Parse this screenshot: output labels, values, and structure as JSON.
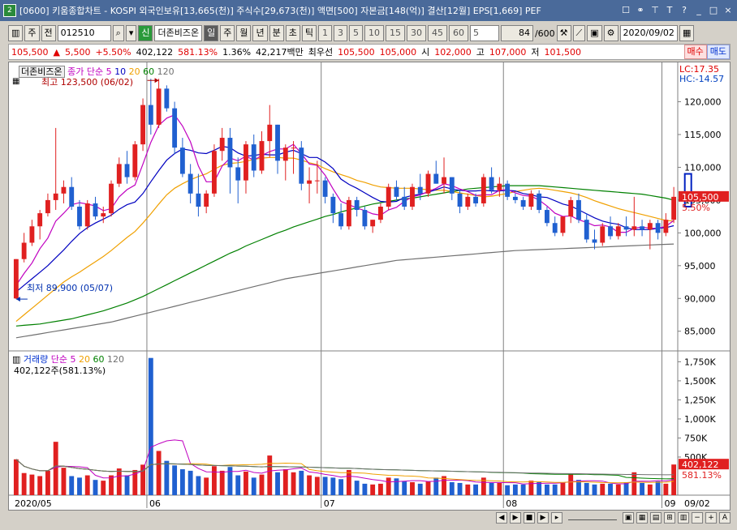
{
  "titlebar": {
    "badge": "2",
    "text": "[0600] 키움종합차트 - KOSPI 외국인보유[13,665(천)] 주식수[29,673(천)] 액면[500] 자본금[148(억)] 결산[12월] EPS[1,669] PEF"
  },
  "toolbar": {
    "market": "주",
    "full": "전",
    "code": "012510",
    "new_badge": "신",
    "name": "더존비즈온",
    "periods": [
      "일",
      "주",
      "월",
      "년",
      "분",
      "초",
      "틱"
    ],
    "selected_period": "일",
    "intervals": [
      "1",
      "3",
      "5",
      "10",
      "15",
      "30",
      "45",
      "60"
    ],
    "interval_value": "5",
    "count": "84",
    "total": "/600",
    "date": "2020/09/02"
  },
  "ticker": {
    "price": "105,500",
    "arrow": "▲",
    "change": "5,500",
    "change_pct": "+5.50%",
    "volume": "402,122",
    "volume_pct": "581.13%",
    "turnover": "1.36%",
    "amount": "42,217백만",
    "best": "최우선",
    "best_ask": "105,500",
    "best_bid": "105,000",
    "open_label": "시",
    "open": "102,000",
    "high_label": "고",
    "high": "107,000",
    "low_label": "저",
    "low": "101,500",
    "buy": "매수",
    "sell": "매도"
  },
  "price_panel": {
    "name_tag": "더존비즈온",
    "ma_label": "종가 단순",
    "ma_periods": [
      "5",
      "10",
      "20",
      "60",
      "120"
    ],
    "ma_colors": [
      "#c000c0",
      "#0000c0",
      "#f0a000",
      "#008000",
      "#707070"
    ],
    "high_note": "최고 123,500 (06/02)",
    "low_note": "최저 89,900 (05/07)",
    "lc": "LC:17.35",
    "hc": "HC:-14.57",
    "last_price": "105,500",
    "last_pct": "5.50%",
    "yticks": [
      "120,000",
      "115,000",
      "110,000",
      "105,000",
      "100,000",
      "95,000",
      "90,000",
      "85,000"
    ]
  },
  "volume_panel": {
    "label": "거래량",
    "ma_label": "단순",
    "ma_periods": [
      "5",
      "20",
      "60",
      "120"
    ],
    "current": "402,122주(581.13%)",
    "last_vol": "402,122",
    "last_pct": "581.13%",
    "yticks": [
      "1,750K",
      "1,500K",
      "1,250K",
      "1,000K",
      "750K",
      "500K"
    ]
  },
  "xaxis": {
    "labels": [
      "2020/05",
      "06",
      "07",
      "08",
      "09"
    ],
    "right_label": "09/02"
  },
  "colors": {
    "up": "#e02020",
    "down": "#2060d0"
  },
  "chart_data": {
    "type": "candlestick",
    "ylim": [
      82000,
      126000
    ],
    "volume_ylim": [
      0,
      1850000
    ],
    "dates": [
      "05/07",
      "05/08",
      "05/11",
      "05/12",
      "05/13",
      "05/14",
      "05/15",
      "05/18",
      "05/19",
      "05/20",
      "05/21",
      "05/22",
      "05/25",
      "05/26",
      "05/27",
      "05/28",
      "05/29",
      "06/01",
      "06/02",
      "06/03",
      "06/04",
      "06/05",
      "06/08",
      "06/09",
      "06/10",
      "06/11",
      "06/12",
      "06/15",
      "06/16",
      "06/17",
      "06/18",
      "06/19",
      "06/22",
      "06/23",
      "06/24",
      "06/25",
      "06/26",
      "06/29",
      "06/30",
      "07/01",
      "07/02",
      "07/03",
      "07/06",
      "07/07",
      "07/08",
      "07/09",
      "07/10",
      "07/13",
      "07/14",
      "07/15",
      "07/16",
      "07/17",
      "07/20",
      "07/21",
      "07/22",
      "07/23",
      "07/24",
      "07/27",
      "07/28",
      "07/29",
      "07/30",
      "07/31",
      "08/03",
      "08/04",
      "08/05",
      "08/06",
      "08/07",
      "08/10",
      "08/11",
      "08/12",
      "08/13",
      "08/14",
      "08/18",
      "08/19",
      "08/20",
      "08/21",
      "08/24",
      "08/25",
      "08/26",
      "08/27",
      "08/28",
      "08/31",
      "09/01",
      "09/02"
    ],
    "ohlc": [
      [
        90000,
        96000,
        89900,
        96000
      ],
      [
        96000,
        100000,
        95500,
        98500
      ],
      [
        98500,
        102000,
        98000,
        101000
      ],
      [
        101000,
        103500,
        99000,
        103000
      ],
      [
        103000,
        106000,
        102500,
        105000
      ],
      [
        105000,
        116000,
        103500,
        106000
      ],
      [
        106000,
        108000,
        104500,
        107000
      ],
      [
        107000,
        108500,
        103500,
        104000
      ],
      [
        104000,
        105000,
        100500,
        101000
      ],
      [
        101000,
        105000,
        100500,
        104500
      ],
      [
        104500,
        105500,
        102000,
        102500
      ],
      [
        102500,
        104000,
        101500,
        103000
      ],
      [
        103000,
        108000,
        102500,
        107500
      ],
      [
        107500,
        111500,
        107000,
        110500
      ],
      [
        110500,
        112500,
        107500,
        108500
      ],
      [
        108500,
        114000,
        108000,
        113500
      ],
      [
        113500,
        120500,
        112500,
        119500
      ],
      [
        119500,
        123500,
        115000,
        116500
      ],
      [
        116500,
        123500,
        116000,
        122000
      ],
      [
        122000,
        122500,
        118500,
        119000
      ],
      [
        119000,
        120000,
        112000,
        113000
      ],
      [
        113000,
        114500,
        108500,
        109000
      ],
      [
        109000,
        110500,
        104500,
        106000
      ],
      [
        106000,
        109000,
        102500,
        104000
      ],
      [
        104000,
        106500,
        103000,
        106000
      ],
      [
        106000,
        113500,
        105500,
        112500
      ],
      [
        112500,
        116000,
        111000,
        114500
      ],
      [
        114500,
        116000,
        106000,
        110000
      ],
      [
        110000,
        111500,
        104500,
        108000
      ],
      [
        108000,
        114000,
        106000,
        113500
      ],
      [
        113500,
        115000,
        108500,
        109500
      ],
      [
        109500,
        115500,
        109000,
        114000
      ],
      [
        114000,
        119500,
        111500,
        116500
      ],
      [
        116500,
        116500,
        109000,
        111000
      ],
      [
        111000,
        113500,
        108000,
        113000
      ],
      [
        113000,
        114000,
        109000,
        113000
      ],
      [
        113000,
        114000,
        106500,
        107500
      ],
      [
        107500,
        110000,
        104500,
        108000
      ],
      [
        108000,
        111000,
        106000,
        108000
      ],
      [
        108000,
        108500,
        104500,
        105500
      ],
      [
        105500,
        106000,
        101500,
        103000
      ],
      [
        103000,
        104500,
        100500,
        101000
      ],
      [
        101000,
        105500,
        100500,
        105000
      ],
      [
        105000,
        105500,
        102500,
        103500
      ],
      [
        103500,
        104000,
        100500,
        101000
      ],
      [
        101000,
        102000,
        100000,
        102000
      ],
      [
        102000,
        104500,
        101500,
        104000
      ],
      [
        104000,
        107500,
        103500,
        107000
      ],
      [
        107000,
        108000,
        105000,
        105500
      ],
      [
        105500,
        107000,
        103500,
        104000
      ],
      [
        104000,
        107500,
        103500,
        107000
      ],
      [
        107000,
        109000,
        105000,
        106000
      ],
      [
        106000,
        109500,
        105500,
        109000
      ],
      [
        109000,
        111000,
        107500,
        107500
      ],
      [
        107500,
        111500,
        106000,
        108500
      ],
      [
        108500,
        108500,
        105000,
        106000
      ],
      [
        106000,
        106500,
        103000,
        104000
      ],
      [
        104000,
        106000,
        103500,
        105500
      ],
      [
        105500,
        106000,
        104000,
        104500
      ],
      [
        104500,
        109000,
        104000,
        108500
      ],
      [
        108500,
        110000,
        106000,
        106500
      ],
      [
        106500,
        108500,
        105500,
        107500
      ],
      [
        107500,
        108000,
        105000,
        105500
      ],
      [
        105500,
        106000,
        104500,
        105000
      ],
      [
        105000,
        105500,
        103500,
        104000
      ],
      [
        104000,
        106500,
        103500,
        106000
      ],
      [
        106000,
        106500,
        103000,
        103500
      ],
      [
        103500,
        104000,
        101000,
        101500
      ],
      [
        101500,
        102500,
        99500,
        100000
      ],
      [
        100000,
        102500,
        99500,
        102500
      ],
      [
        102500,
        105500,
        101500,
        105000
      ],
      [
        105000,
        106000,
        101500,
        102000
      ],
      [
        102000,
        103000,
        98500,
        99000
      ],
      [
        99000,
        100500,
        97500,
        98500
      ],
      [
        98500,
        101500,
        98000,
        101000
      ],
      [
        101000,
        102500,
        99000,
        99500
      ],
      [
        99500,
        101500,
        99000,
        101000
      ],
      [
        101000,
        102500,
        99500,
        100500
      ],
      [
        100500,
        105500,
        99500,
        101000
      ],
      [
        101000,
        102000,
        99500,
        100500
      ],
      [
        100500,
        102000,
        97500,
        101500
      ],
      [
        101500,
        102000,
        99000,
        100000
      ],
      [
        100000,
        103000,
        99500,
        102000
      ],
      [
        102000,
        107000,
        101500,
        105500
      ]
    ],
    "volumes": [
      470000,
      290000,
      270000,
      250000,
      320000,
      700000,
      360000,
      250000,
      230000,
      260000,
      200000,
      190000,
      260000,
      350000,
      260000,
      330000,
      400000,
      1800000,
      580000,
      450000,
      390000,
      340000,
      320000,
      250000,
      230000,
      380000,
      320000,
      370000,
      260000,
      310000,
      230000,
      270000,
      520000,
      300000,
      340000,
      300000,
      320000,
      260000,
      240000,
      240000,
      230000,
      210000,
      330000,
      190000,
      150000,
      140000,
      150000,
      230000,
      220000,
      180000,
      170000,
      150000,
      180000,
      230000,
      250000,
      170000,
      160000,
      140000,
      140000,
      230000,
      160000,
      160000,
      130000,
      140000,
      140000,
      190000,
      170000,
      140000,
      140000,
      170000,
      270000,
      200000,
      160000,
      140000,
      150000,
      150000,
      140000,
      170000,
      300000,
      160000,
      140000,
      180000,
      150000,
      402122
    ],
    "ma5": [
      92000,
      93800,
      95400,
      97600,
      99200,
      101800,
      103000,
      104300,
      104600,
      104400,
      104100,
      103400,
      103700,
      105500,
      106600,
      107300,
      110500,
      113800,
      116400,
      117500,
      118000,
      116300,
      113900,
      110200,
      107800,
      107800,
      110200,
      111400,
      111000,
      111700,
      111100,
      111800,
      112400,
      112800,
      112800,
      113500,
      112100,
      110500,
      110300,
      108800,
      106700,
      104800,
      104300,
      103800,
      103400,
      102900,
      102700,
      103500,
      103900,
      104800,
      105500,
      105800,
      106300,
      106800,
      107500,
      107200,
      106700,
      106300,
      105700,
      105800,
      105800,
      106500,
      106600,
      106100,
      105700,
      105600,
      105000,
      104100,
      103000,
      102500,
      102600,
      102000,
      101600,
      101100,
      101200,
      100900,
      100100,
      100100,
      100700,
      100900,
      100700,
      100700,
      101000,
      101900
    ],
    "ma10": [
      91000,
      92000,
      93000,
      94000,
      95000,
      96200,
      97400,
      98700,
      99900,
      100800,
      101500,
      102100,
      102700,
      103600,
      104300,
      104700,
      106000,
      107800,
      109500,
      111100,
      112100,
      112800,
      112600,
      112200,
      112100,
      112600,
      113200,
      113000,
      112200,
      111700,
      111800,
      112000,
      111900,
      111900,
      112300,
      112600,
      112100,
      111500,
      111500,
      110800,
      109800,
      108200,
      107400,
      106800,
      106100,
      105400,
      104800,
      104700,
      104800,
      105400,
      105700,
      105900,
      106200,
      106600,
      107000,
      106700,
      106500,
      106400,
      106400,
      106500,
      106400,
      106400,
      106500,
      106400,
      106000,
      105800,
      105500,
      105400,
      104900,
      104400,
      104100,
      103500,
      102900,
      102300,
      101800,
      101500,
      101300,
      100800,
      100500,
      100500,
      100500,
      100700,
      100800,
      101100
    ],
    "ma20": [
      86500,
      87500,
      88500,
      89500,
      90500,
      91500,
      92500,
      93300,
      94000,
      94800,
      95600,
      96400,
      97300,
      98300,
      99300,
      100200,
      101500,
      102900,
      104400,
      105800,
      106800,
      107500,
      108100,
      108600,
      109000,
      109700,
      110300,
      110600,
      110700,
      110900,
      111200,
      111400,
      111500,
      111500,
      111400,
      111400,
      111100,
      110700,
      110400,
      109800,
      109300,
      108900,
      108500,
      108000,
      107700,
      107300,
      107000,
      106900,
      106800,
      106800,
      106800,
      106700,
      106600,
      106500,
      106500,
      106300,
      106100,
      105900,
      105700,
      105500,
      105600,
      105800,
      106000,
      106300,
      106500,
      106700,
      106800,
      106700,
      106500,
      106300,
      106100,
      105800,
      105400,
      104900,
      104500,
      104100,
      103700,
      103400,
      103100,
      102800,
      102500,
      102200,
      101900,
      101800
    ],
    "ma60": [
      85800,
      85900,
      86000,
      86100,
      86300,
      86500,
      86700,
      86900,
      87200,
      87500,
      87800,
      88100,
      88500,
      88900,
      89300,
      89800,
      90300,
      90900,
      91500,
      92100,
      92700,
      93300,
      93900,
      94500,
      95100,
      95700,
      96300,
      96900,
      97400,
      98000,
      98500,
      99000,
      99500,
      100000,
      100400,
      100900,
      101300,
      101700,
      102100,
      102500,
      102800,
      103200,
      103500,
      103800,
      104100,
      104400,
      104600,
      104800,
      105000,
      105200,
      105300,
      105500,
      105700,
      105900,
      106100,
      106300,
      106500,
      106700,
      106800,
      106900,
      107000,
      107100,
      107200,
      107200,
      107200,
      107200,
      107200,
      107100,
      107000,
      106900,
      106800,
      106700,
      106600,
      106500,
      106400,
      106300,
      106200,
      106100,
      106000,
      105900,
      105700,
      105500,
      105300,
      105000
    ],
    "ma120": [
      84000,
      84200,
      84400,
      84600,
      84800,
      85000,
      85200,
      85400,
      85600,
      85800,
      86000,
      86200,
      86400,
      86700,
      87000,
      87300,
      87600,
      87900,
      88200,
      88500,
      88800,
      89100,
      89400,
      89700,
      90000,
      90300,
      90600,
      90900,
      91200,
      91500,
      91800,
      92100,
      92400,
      92700,
      93000,
      93200,
      93400,
      93600,
      93800,
      94000,
      94200,
      94400,
      94600,
      94800,
      95000,
      95200,
      95400,
      95600,
      95800,
      95900,
      96000,
      96100,
      96200,
      96300,
      96400,
      96500,
      96600,
      96700,
      96800,
      96900,
      97000,
      97100,
      97200,
      97300,
      97350,
      97400,
      97450,
      97500,
      97550,
      97600,
      97650,
      97700,
      97750,
      97800,
      97850,
      97900,
      97950,
      98000,
      98050,
      98100,
      98150,
      98200,
      98250,
      98300
    ]
  }
}
